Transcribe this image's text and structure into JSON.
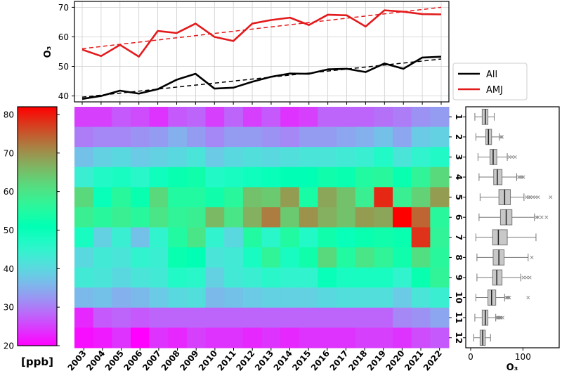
{
  "chart_data": [
    {
      "type": "line",
      "ylabel": "O₃",
      "ylim": [
        38,
        72
      ],
      "yticks": [
        40,
        50,
        60,
        70
      ],
      "grid": true,
      "legend_position": "outside-right",
      "x": [
        2003,
        2004,
        2005,
        2006,
        2007,
        2008,
        2009,
        2010,
        2011,
        2012,
        2013,
        2014,
        2015,
        2016,
        2017,
        2018,
        2019,
        2020,
        2021,
        2022
      ],
      "series": [
        {
          "name": "All",
          "color": "#000000",
          "values": [
            39.0,
            40.0,
            41.8,
            40.8,
            42.3,
            45.5,
            47.5,
            42.5,
            42.8,
            44.8,
            46.5,
            47.6,
            47.5,
            49.0,
            49.2,
            48.1,
            51.0,
            49.2,
            53.0,
            53.3
          ],
          "trend": [
            39.6,
            52.5
          ]
        },
        {
          "name": "AMJ",
          "color": "#e31a1c",
          "values": [
            55.7,
            53.5,
            57.3,
            53.3,
            62.0,
            61.3,
            64.5,
            60.0,
            58.6,
            64.5,
            65.7,
            66.5,
            64.0,
            67.5,
            67.3,
            63.5,
            69.0,
            68.5,
            67.7,
            67.6
          ],
          "trend": [
            56.0,
            70.0
          ]
        }
      ]
    },
    {
      "type": "heatmap",
      "x": [
        "2003",
        "2004",
        "2005",
        "2006",
        "2007",
        "2008",
        "2009",
        "2010",
        "2011",
        "2012",
        "2013",
        "2014",
        "2015",
        "2016",
        "2017",
        "2018",
        "2019",
        "2020",
        "2021",
        "2022"
      ],
      "y": [
        "1",
        "2",
        "3",
        "4",
        "5",
        "6",
        "7",
        "8",
        "9",
        "10",
        "11",
        "12"
      ],
      "zlim": [
        20,
        82
      ],
      "colormap": "rainbow",
      "colorbar_label": "[ppb]",
      "colorbar_ticks": [
        20,
        30,
        40,
        50,
        60,
        70,
        80
      ],
      "values": [
        [
          25,
          25,
          27,
          26,
          24,
          27,
          28,
          25,
          28,
          25,
          27,
          24,
          25,
          28,
          28,
          28,
          29,
          30,
          32,
          33
        ],
        [
          30,
          31,
          31,
          32,
          33,
          35,
          33,
          31,
          33,
          33,
          32,
          31,
          33,
          33,
          34,
          35,
          37,
          34,
          38,
          39
        ],
        [
          37,
          39,
          40,
          38,
          39,
          40,
          42,
          38,
          40,
          41,
          40,
          41,
          42,
          42,
          43,
          44,
          47,
          42,
          45,
          47
        ],
        [
          44,
          47,
          48,
          46,
          49,
          52,
          53,
          47,
          48,
          49,
          50,
          51,
          51,
          53,
          52,
          55,
          56,
          52,
          57,
          62
        ],
        [
          62,
          50,
          56,
          52,
          62,
          55,
          55,
          53,
          56,
          65,
          64,
          69,
          54,
          68,
          65,
          58,
          79,
          58,
          63,
          69
        ],
        [
          58,
          56,
          58,
          56,
          60,
          57,
          58,
          66,
          60,
          67,
          72,
          64,
          70,
          67,
          65,
          69,
          68,
          82,
          74,
          56
        ],
        [
          48,
          39,
          44,
          37,
          45,
          55,
          60,
          45,
          40,
          55,
          46,
          55,
          47,
          53,
          50,
          52,
          53,
          52,
          78,
          57
        ],
        [
          40,
          43,
          42,
          45,
          44,
          52,
          51,
          42,
          43,
          48,
          57,
          48,
          53,
          62,
          55,
          60,
          57,
          53,
          61,
          56
        ],
        [
          43,
          42,
          40,
          42,
          43,
          47,
          46,
          39,
          43,
          44,
          46,
          45,
          45,
          50,
          48,
          48,
          48,
          45,
          52,
          57
        ],
        [
          36,
          37,
          35,
          36,
          38,
          40,
          41,
          36,
          37,
          38,
          39,
          39,
          39,
          40,
          41,
          41,
          41,
          38,
          42,
          44
        ],
        [
          23,
          27,
          28,
          27,
          28,
          28,
          28,
          28,
          28,
          28,
          28,
          28,
          28,
          28,
          28,
          28,
          28,
          31,
          32,
          34
        ],
        [
          21,
          22,
          24,
          20,
          24,
          23,
          25,
          24,
          24,
          23,
          24,
          23,
          24,
          24,
          24,
          25,
          25,
          24,
          26,
          27
        ]
      ]
    },
    {
      "type": "box",
      "orientation": "horizontal",
      "xlabel": "O₃",
      "xlim": [
        0,
        160
      ],
      "xticks": [
        0,
        100
      ],
      "categories": [
        "1",
        "2",
        "3",
        "4",
        "5",
        "6",
        "7",
        "8",
        "9",
        "10",
        "11",
        "12"
      ],
      "boxes": [
        {
          "whislo": 8,
          "q1": 22,
          "med": 28,
          "q3": 33,
          "whishi": 45,
          "fliers": []
        },
        {
          "whislo": 10,
          "q1": 29,
          "med": 34,
          "q3": 40,
          "whishi": 55,
          "fliers": [
            58,
            60
          ]
        },
        {
          "whislo": 14,
          "q1": 37,
          "med": 43,
          "q3": 50,
          "whishi": 70,
          "fliers": [
            74,
            79,
            85
          ]
        },
        {
          "whislo": 16,
          "q1": 44,
          "med": 51,
          "q3": 60,
          "whishi": 88,
          "fliers": [
            92,
            95,
            98,
            101
          ]
        },
        {
          "whislo": 18,
          "q1": 54,
          "med": 65,
          "q3": 76,
          "whishi": 102,
          "fliers": [
            107,
            111,
            114,
            119,
            124,
            129,
            153
          ]
        },
        {
          "whislo": 16,
          "q1": 57,
          "med": 68,
          "q3": 79,
          "whishi": 122,
          "fliers": [
            126,
            129,
            136,
            145
          ]
        },
        {
          "whislo": 10,
          "q1": 42,
          "med": 53,
          "q3": 70,
          "whishi": 125,
          "fliers": []
        },
        {
          "whislo": 12,
          "q1": 43,
          "med": 54,
          "q3": 64,
          "whishi": 110,
          "fliers": [
            117
          ]
        },
        {
          "whislo": 12,
          "q1": 42,
          "med": 50,
          "q3": 60,
          "whishi": 96,
          "fliers": [
            101,
            107,
            113
          ]
        },
        {
          "whislo": 10,
          "q1": 33,
          "med": 40,
          "q3": 48,
          "whishi": 65,
          "fliers": [
            68,
            70,
            72,
            74,
            110
          ]
        },
        {
          "whislo": 8,
          "q1": 22,
          "med": 28,
          "q3": 33,
          "whishi": 48,
          "fliers": [
            50,
            52,
            54,
            56,
            58,
            61
          ]
        },
        {
          "whislo": 6,
          "q1": 18,
          "med": 23,
          "q3": 28,
          "whishi": 38,
          "fliers": []
        }
      ]
    }
  ]
}
